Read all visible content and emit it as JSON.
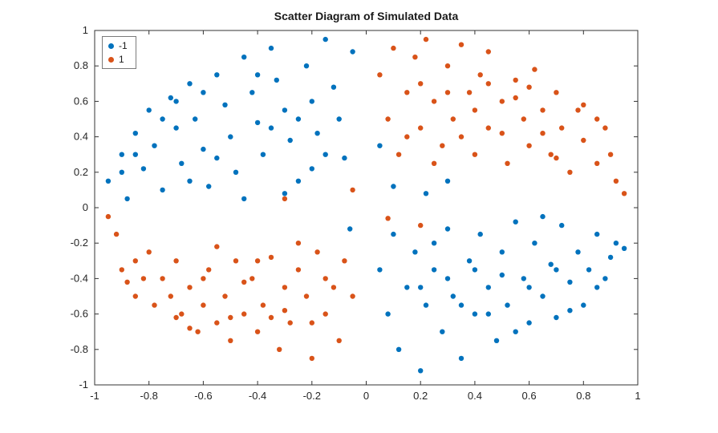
{
  "chart_data": {
    "type": "scatter",
    "title": "Scatter Diagram of Simulated Data",
    "xlabel": "",
    "ylabel": "",
    "xlim": [
      -1,
      1
    ],
    "ylim": [
      -1,
      1
    ],
    "xticks": [
      -1,
      -0.8,
      -0.6,
      -0.4,
      -0.2,
      0,
      0.2,
      0.4,
      0.6,
      0.8,
      1
    ],
    "yticks": [
      -1,
      -0.8,
      -0.6,
      -0.4,
      -0.2,
      0,
      0.2,
      0.4,
      0.6,
      0.8,
      1
    ],
    "grid": false,
    "legend_position": "top-left",
    "axis_color": "#333333",
    "marker_radius": 3.2,
    "series": [
      {
        "name": "-1",
        "color": "#0072BD",
        "points": [
          [
            -0.95,
            0.15
          ],
          [
            -0.9,
            0.3
          ],
          [
            -0.88,
            0.05
          ],
          [
            -0.85,
            0.42
          ],
          [
            -0.82,
            0.22
          ],
          [
            -0.8,
            0.55
          ],
          [
            -0.78,
            0.35
          ],
          [
            -0.75,
            0.1
          ],
          [
            -0.72,
            0.62
          ],
          [
            -0.7,
            0.45
          ],
          [
            -0.68,
            0.25
          ],
          [
            -0.65,
            0.7
          ],
          [
            -0.63,
            0.5
          ],
          [
            -0.6,
            0.33
          ],
          [
            -0.58,
            0.12
          ],
          [
            -0.55,
            0.75
          ],
          [
            -0.52,
            0.58
          ],
          [
            -0.5,
            0.4
          ],
          [
            -0.48,
            0.2
          ],
          [
            -0.45,
            0.85
          ],
          [
            -0.42,
            0.65
          ],
          [
            -0.4,
            0.48
          ],
          [
            -0.38,
            0.3
          ],
          [
            -0.35,
            0.9
          ],
          [
            -0.33,
            0.72
          ],
          [
            -0.3,
            0.55
          ],
          [
            -0.28,
            0.38
          ],
          [
            -0.25,
            0.15
          ],
          [
            -0.22,
            0.8
          ],
          [
            -0.2,
            0.6
          ],
          [
            -0.18,
            0.42
          ],
          [
            -0.15,
            0.95
          ],
          [
            -0.12,
            0.68
          ],
          [
            -0.1,
            0.5
          ],
          [
            -0.08,
            0.28
          ],
          [
            -0.05,
            0.88
          ],
          [
            -0.45,
            0.05
          ],
          [
            -0.3,
            0.08
          ],
          [
            -0.65,
            0.15
          ],
          [
            -0.85,
            0.3
          ],
          [
            -0.7,
            0.6
          ],
          [
            -0.55,
            0.28
          ],
          [
            -0.4,
            0.75
          ],
          [
            -0.25,
            0.5
          ],
          [
            -0.15,
            0.3
          ],
          [
            -0.6,
            0.65
          ],
          [
            -0.75,
            0.5
          ],
          [
            -0.9,
            0.2
          ],
          [
            -0.35,
            0.45
          ],
          [
            -0.2,
            0.22
          ],
          [
            0.05,
            -0.35
          ],
          [
            0.08,
            -0.6
          ],
          [
            0.1,
            -0.15
          ],
          [
            0.12,
            -0.8
          ],
          [
            0.15,
            -0.45
          ],
          [
            0.18,
            -0.25
          ],
          [
            0.2,
            -0.92
          ],
          [
            0.22,
            -0.55
          ],
          [
            0.25,
            -0.35
          ],
          [
            0.28,
            -0.7
          ],
          [
            0.3,
            -0.12
          ],
          [
            0.32,
            -0.5
          ],
          [
            0.35,
            -0.85
          ],
          [
            0.38,
            -0.3
          ],
          [
            0.4,
            -0.6
          ],
          [
            0.42,
            -0.15
          ],
          [
            0.45,
            -0.45
          ],
          [
            0.48,
            -0.75
          ],
          [
            0.5,
            -0.25
          ],
          [
            0.52,
            -0.55
          ],
          [
            0.55,
            -0.08
          ],
          [
            0.58,
            -0.4
          ],
          [
            0.6,
            -0.65
          ],
          [
            0.62,
            -0.2
          ],
          [
            0.65,
            -0.5
          ],
          [
            0.68,
            -0.32
          ],
          [
            0.7,
            -0.62
          ],
          [
            0.72,
            -0.1
          ],
          [
            0.75,
            -0.42
          ],
          [
            0.78,
            -0.25
          ],
          [
            0.8,
            -0.55
          ],
          [
            0.82,
            -0.35
          ],
          [
            0.85,
            -0.15
          ],
          [
            0.88,
            -0.4
          ],
          [
            0.9,
            -0.28
          ],
          [
            0.92,
            -0.2
          ],
          [
            0.95,
            -0.23
          ],
          [
            0.3,
            -0.4
          ],
          [
            0.5,
            -0.38
          ],
          [
            0.65,
            -0.05
          ],
          [
            0.45,
            -0.6
          ],
          [
            0.25,
            -0.2
          ],
          [
            0.6,
            -0.45
          ],
          [
            0.75,
            -0.58
          ],
          [
            0.55,
            -0.7
          ],
          [
            0.35,
            -0.55
          ],
          [
            0.2,
            -0.45
          ],
          [
            0.4,
            -0.35
          ],
          [
            0.85,
            -0.45
          ],
          [
            0.7,
            -0.35
          ],
          [
            0.1,
            0.12
          ],
          [
            0.22,
            0.08
          ],
          [
            -0.06,
            -0.12
          ],
          [
            0.05,
            0.35
          ],
          [
            0.3,
            0.15
          ]
        ]
      },
      {
        "name": "1",
        "color": "#D95319",
        "points": [
          [
            0.05,
            0.75
          ],
          [
            0.08,
            0.5
          ],
          [
            0.1,
            0.9
          ],
          [
            0.12,
            0.3
          ],
          [
            0.15,
            0.65
          ],
          [
            0.18,
            0.85
          ],
          [
            0.2,
            0.45
          ],
          [
            0.22,
            0.95
          ],
          [
            0.25,
            0.6
          ],
          [
            0.28,
            0.35
          ],
          [
            0.3,
            0.8
          ],
          [
            0.32,
            0.5
          ],
          [
            0.35,
            0.92
          ],
          [
            0.38,
            0.65
          ],
          [
            0.4,
            0.3
          ],
          [
            0.42,
            0.75
          ],
          [
            0.45,
            0.45
          ],
          [
            0.45,
            0.88
          ],
          [
            0.5,
            0.6
          ],
          [
            0.52,
            0.25
          ],
          [
            0.55,
            0.72
          ],
          [
            0.58,
            0.5
          ],
          [
            0.6,
            0.35
          ],
          [
            0.62,
            0.78
          ],
          [
            0.65,
            0.55
          ],
          [
            0.68,
            0.3
          ],
          [
            0.7,
            0.65
          ],
          [
            0.72,
            0.45
          ],
          [
            0.75,
            0.2
          ],
          [
            0.78,
            0.55
          ],
          [
            0.8,
            0.38
          ],
          [
            0.8,
            0.58
          ],
          [
            0.85,
            0.25
          ],
          [
            0.88,
            0.45
          ],
          [
            0.9,
            0.3
          ],
          [
            0.92,
            0.15
          ],
          [
            0.95,
            0.08
          ],
          [
            0.35,
            0.4
          ],
          [
            0.55,
            0.62
          ],
          [
            0.25,
            0.25
          ],
          [
            0.45,
            0.7
          ],
          [
            0.65,
            0.42
          ],
          [
            0.15,
            0.4
          ],
          [
            0.3,
            0.65
          ],
          [
            0.5,
            0.42
          ],
          [
            0.7,
            0.28
          ],
          [
            0.85,
            0.5
          ],
          [
            0.6,
            0.68
          ],
          [
            0.4,
            0.55
          ],
          [
            0.2,
            0.7
          ],
          [
            -0.05,
            -0.5
          ],
          [
            -0.08,
            -0.3
          ],
          [
            -0.1,
            -0.75
          ],
          [
            -0.12,
            -0.45
          ],
          [
            -0.15,
            -0.6
          ],
          [
            -0.18,
            -0.25
          ],
          [
            -0.2,
            -0.85
          ],
          [
            -0.22,
            -0.5
          ],
          [
            -0.25,
            -0.35
          ],
          [
            -0.28,
            -0.65
          ],
          [
            -0.3,
            -0.45
          ],
          [
            -0.32,
            -0.8
          ],
          [
            -0.35,
            -0.28
          ],
          [
            -0.38,
            -0.55
          ],
          [
            -0.4,
            -0.7
          ],
          [
            -0.42,
            -0.4
          ],
          [
            -0.45,
            -0.6
          ],
          [
            -0.48,
            -0.3
          ],
          [
            -0.5,
            -0.75
          ],
          [
            -0.52,
            -0.5
          ],
          [
            -0.55,
            -0.65
          ],
          [
            -0.58,
            -0.35
          ],
          [
            -0.6,
            -0.55
          ],
          [
            -0.62,
            -0.7
          ],
          [
            -0.65,
            -0.45
          ],
          [
            -0.68,
            -0.6
          ],
          [
            -0.7,
            -0.3
          ],
          [
            -0.72,
            -0.5
          ],
          [
            -0.75,
            -0.4
          ],
          [
            -0.78,
            -0.55
          ],
          [
            -0.8,
            -0.25
          ],
          [
            -0.82,
            -0.4
          ],
          [
            -0.85,
            -0.3
          ],
          [
            -0.88,
            -0.42
          ],
          [
            -0.9,
            -0.35
          ],
          [
            -0.92,
            -0.15
          ],
          [
            -0.95,
            -0.05
          ],
          [
            -0.25,
            -0.2
          ],
          [
            -0.45,
            -0.42
          ],
          [
            -0.65,
            -0.68
          ],
          [
            -0.35,
            -0.62
          ],
          [
            -0.55,
            -0.22
          ],
          [
            -0.15,
            -0.4
          ],
          [
            -0.3,
            -0.58
          ],
          [
            -0.5,
            -0.62
          ],
          [
            -0.7,
            -0.62
          ],
          [
            -0.4,
            -0.3
          ],
          [
            -0.2,
            -0.65
          ],
          [
            -0.6,
            -0.4
          ],
          [
            -0.85,
            -0.5
          ],
          [
            0.08,
            -0.06
          ],
          [
            -0.05,
            0.1
          ],
          [
            -0.3,
            0.05
          ],
          [
            0.2,
            -0.1
          ]
        ]
      }
    ]
  }
}
